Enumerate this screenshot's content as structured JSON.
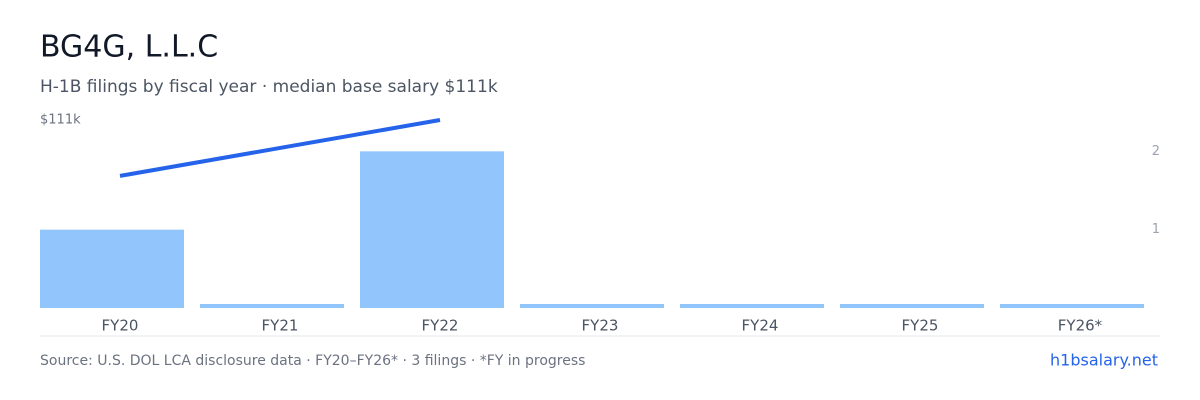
{
  "chart_data": {
    "type": "bar",
    "title": "BG4G, L.L.C",
    "subtitle": "H-1B filings by fiscal year · median base salary $111k",
    "categories": [
      "FY20",
      "FY21",
      "FY22",
      "FY23",
      "FY24",
      "FY25",
      "FY26*"
    ],
    "series": [
      {
        "type": "bar",
        "color": "#93c5fd",
        "axis": "y2",
        "values": [
          1,
          0,
          2,
          0,
          0,
          0,
          0
        ]
      },
      {
        "type": "line",
        "color": "#2563eb",
        "x": [
          "FY20",
          "FY22"
        ],
        "values": [
          78,
          111
        ]
      }
    ],
    "ylim": [
      0,
      111
    ],
    "yticks": [
      {
        "value": 111,
        "label": "$111k"
      }
    ],
    "y2lim": [
      0,
      2.4
    ],
    "y2ticks": [
      1,
      2
    ],
    "source": "Source: U.S. DOL LCA disclosure data · FY20–FY26* · 3 filings · *FY in progress",
    "link": "h1bsalary.net"
  }
}
